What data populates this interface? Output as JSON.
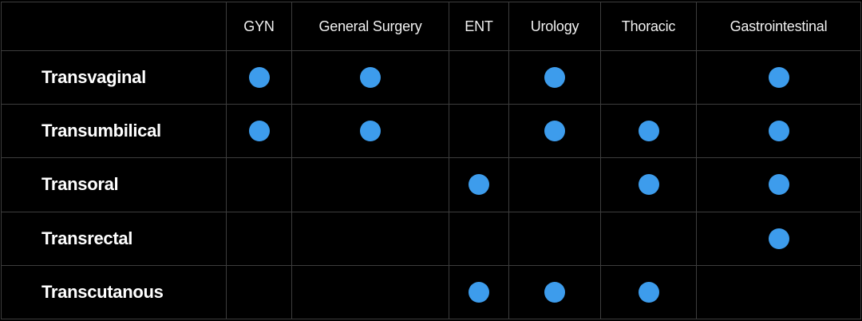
{
  "chart_data": {
    "type": "table",
    "title": "",
    "corner_label": "",
    "columns": [
      "GYN",
      "General Surgery",
      "ENT",
      "Urology",
      "Thoracic",
      "Gastrointestinal"
    ],
    "rows": [
      {
        "label": "Transvaginal",
        "marks": [
          true,
          true,
          false,
          true,
          false,
          true
        ]
      },
      {
        "label": "Transumbilical",
        "marks": [
          true,
          true,
          false,
          true,
          true,
          true
        ]
      },
      {
        "label": "Transoral",
        "marks": [
          false,
          false,
          true,
          false,
          true,
          true
        ]
      },
      {
        "label": "Transrectal",
        "marks": [
          false,
          false,
          false,
          false,
          false,
          true
        ]
      },
      {
        "label": "Transcutanous",
        "marks": [
          false,
          false,
          true,
          true,
          true,
          false
        ]
      }
    ],
    "marker": {
      "icon": "filled-circle-icon",
      "color": "#3d9cec"
    },
    "colors": {
      "background": "#000000",
      "grid": "#3d3d3d",
      "header_text": "#f1f1f1",
      "row_label_text": "#ffffff"
    },
    "layout_hints": {
      "grid": true,
      "legend": false
    }
  }
}
